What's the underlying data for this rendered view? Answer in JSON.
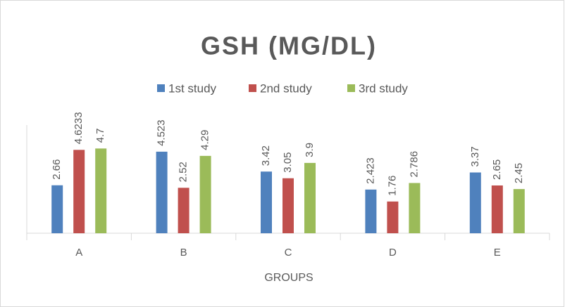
{
  "chart_data": {
    "type": "bar",
    "title": "GSH (MG/DL)",
    "x_label": "GROUPS",
    "categories": [
      "A",
      "B",
      "C",
      "D",
      "E"
    ],
    "series": [
      {
        "name": "1st study",
        "color": "#4f81bd",
        "values": [
          2.66,
          4.523,
          3.42,
          2.423,
          3.37
        ]
      },
      {
        "name": "2nd study",
        "color": "#c0504d",
        "values": [
          4.6233,
          2.52,
          3.05,
          1.76,
          2.65
        ]
      },
      {
        "name": "3rd study",
        "color": "#9bbb59",
        "values": [
          4.7,
          4.29,
          3.9,
          2.786,
          2.45
        ]
      }
    ],
    "ylim": [
      0,
      6
    ],
    "legend": "top"
  }
}
